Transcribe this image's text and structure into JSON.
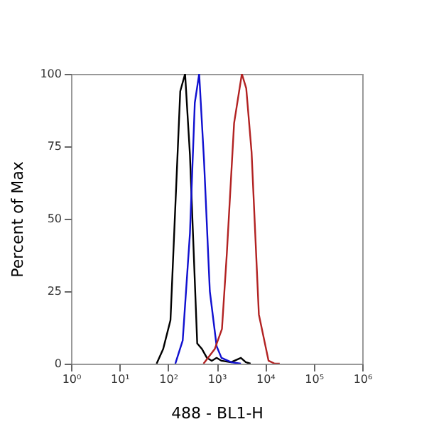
{
  "chart_data": {
    "type": "line",
    "xlabel": "488 - BL1-H",
    "ylabel": "Percent of Max",
    "log": "x",
    "grid": false,
    "legend": false,
    "marker": "none",
    "line_style": "solid",
    "xlim": [
      1,
      1000000
    ],
    "xticks": [
      {
        "value": 1,
        "label": "10⁰"
      },
      {
        "value": 10,
        "label": "10¹"
      },
      {
        "value": 100,
        "label": "10²"
      },
      {
        "value": 1000,
        "label": "10³"
      },
      {
        "value": 10000,
        "label": "10⁴"
      },
      {
        "value": 100000,
        "label": "10⁵"
      },
      {
        "value": 1000000,
        "label": "10⁶"
      }
    ],
    "ylim": [
      0,
      100
    ],
    "yticks": [
      0,
      25,
      50,
      75,
      100
    ],
    "series": [
      {
        "color": "#000000",
        "x": [
          58,
          79,
          112,
          178,
          224,
          282,
          398,
          501,
          631,
          794,
          1000,
          1259,
          1995,
          3162,
          3981,
          5012
        ],
        "values": [
          0,
          5,
          15,
          94,
          100,
          72,
          7,
          5,
          2,
          1,
          2,
          1,
          0.5,
          2,
          0.5,
          0
        ]
      },
      {
        "color": "#1010d0",
        "x": [
          141,
          200,
          282,
          355,
          437,
          550,
          724,
          1000,
          1259,
          1995,
          3162
        ],
        "values": [
          0,
          8,
          45,
          90,
          100,
          70,
          25,
          6,
          2,
          0.5,
          0
        ]
      },
      {
        "color": "#b22222",
        "x": [
          537,
          912,
          1288,
          1622,
          2291,
          3311,
          4074,
          5248,
          7413,
          11749,
          15849,
          19953
        ],
        "values": [
          0,
          5,
          12,
          38,
          83,
          100,
          95,
          73,
          17,
          1,
          0,
          0
        ]
      }
    ]
  }
}
